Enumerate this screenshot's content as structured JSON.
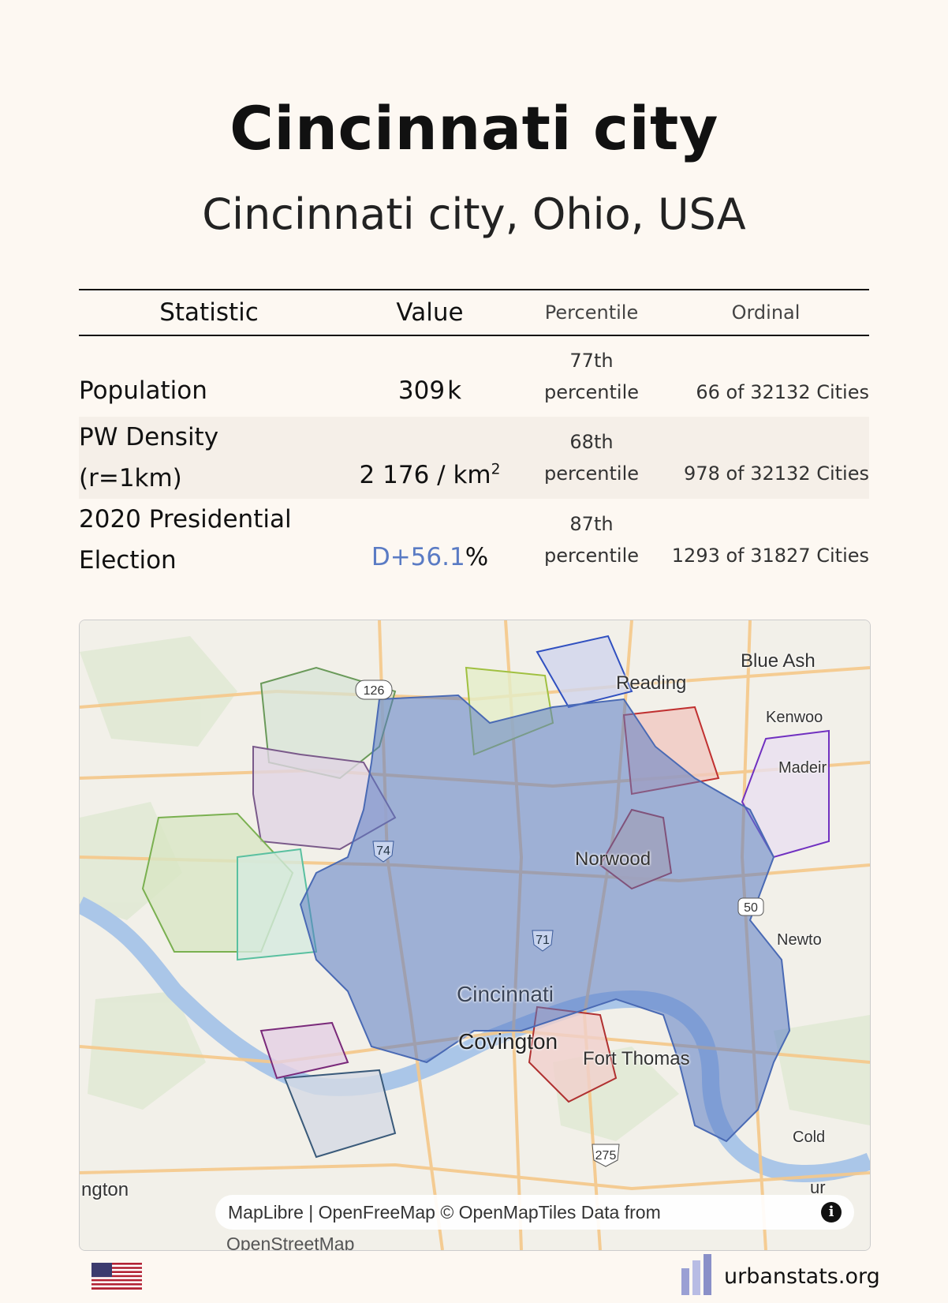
{
  "header": {
    "title": "Cincinnati city",
    "subtitle": "Cincinnati city, Ohio, USA"
  },
  "table": {
    "headers": [
      "Statistic",
      "Value",
      "Percentile",
      "Ordinal"
    ],
    "rows": [
      {
        "statistic": "Population",
        "value": "309",
        "value_unit": "k",
        "percentile_num": "77th",
        "percentile_word": "percentile",
        "ordinal": "66 of 32132 Cities"
      },
      {
        "statistic_line1": "PW Density",
        "statistic_line2": "(r=1km)",
        "value": "2 176",
        "value_unit": "/ km",
        "value_sup": "2",
        "percentile_num": "68th",
        "percentile_word": "percentile",
        "ordinal": "978 of 32132 Cities"
      },
      {
        "statistic_line1": "2020 Presidential",
        "statistic_line2": "Election",
        "value": "D+56.1",
        "value_unit": "%",
        "value_color": "#5a7bc4",
        "percentile_num": "87th",
        "percentile_word": "percentile",
        "ordinal": "1293 of 31827 Cities"
      }
    ]
  },
  "map": {
    "region_color": "#5a7bc4",
    "labels": {
      "blue_ash": "Blue Ash",
      "reading": "Reading",
      "kenwood": "Kenwoo",
      "madeira": "Madeir",
      "norwood": "Norwood",
      "newtown": "Newto",
      "cincinnati": "Cincinnati",
      "covington": "Covington",
      "fort_thomas": "Fort Thomas",
      "cold": "Cold",
      "ngton": "ngton",
      "ur": "ur"
    },
    "road_shields": [
      "126",
      "74",
      "71",
      "50",
      "275"
    ],
    "attribution": "MapLibre | OpenFreeMap © OpenMapTiles Data from",
    "attribution_overflow": "OpenStreetMap",
    "info_icon": "i"
  },
  "footer": {
    "flag": "us-flag-icon",
    "site": "urbanstats.org"
  }
}
